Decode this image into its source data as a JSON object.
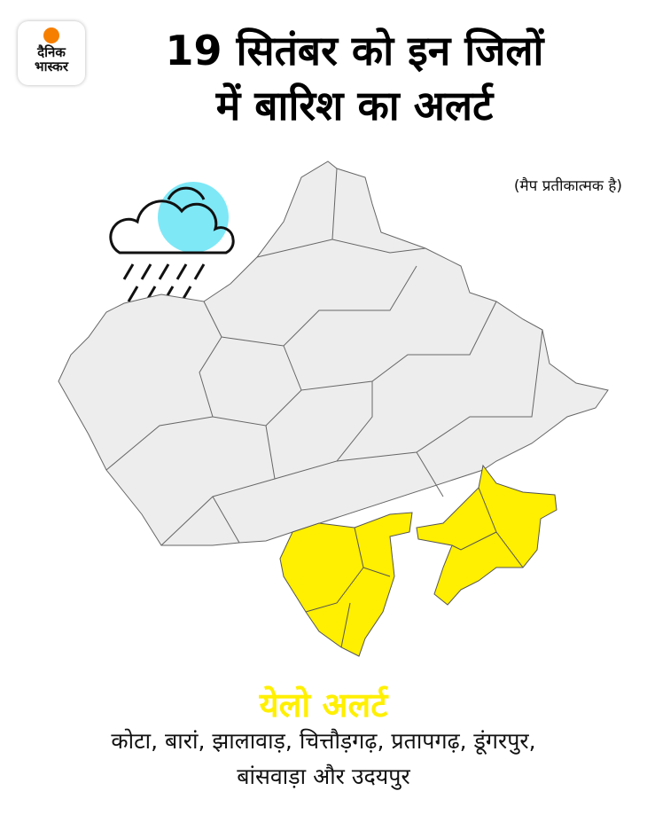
{
  "logo": {
    "line1": "दैनिक",
    "line2": "भास्कर",
    "accent": "#f77f00"
  },
  "title": {
    "line1": "19 सितंबर को इन जिलों",
    "line2": "में बारिश का अलर्ट"
  },
  "map_note": "(मैप प्रतीकात्मक है)",
  "weather_icon": "rain-cloud-icon",
  "map": {
    "region": "Rajasthan",
    "base_color": "#ededed",
    "alert_color": "#ffef00",
    "sun_color": "#7ee8f7"
  },
  "alert": {
    "label": "येलो अलर्ट",
    "color": "#ffef00",
    "districts_line1": "कोटा, बारां, झालावाड़, चित्तौड़गढ़, प्रतापगढ़, डूंगरपुर,",
    "districts_line2": "बांसवाड़ा और उदयपुर"
  }
}
